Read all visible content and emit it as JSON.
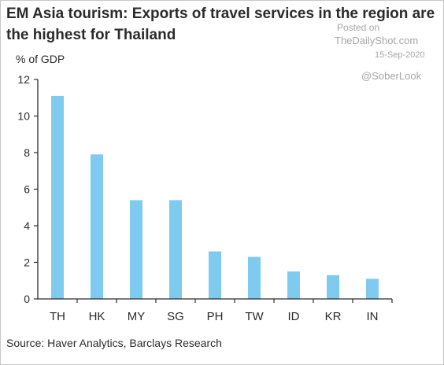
{
  "title_line1": "EM Asia tourism: Exports of travel services in the region are",
  "title_line2": "the highest for Thailand",
  "watermark": {
    "posted": "Posted on",
    "site": "TheDailyShot.com",
    "date": "15-Sep-2020",
    "handle": "@SoberLook"
  },
  "source": "Source: Haver Analytics, Barclays Research",
  "colors": {
    "bar": "#7ecbef",
    "axis": "#2b2b2b",
    "text": "#2b2b2b"
  },
  "chart_data": {
    "type": "bar",
    "title": "EM Asia tourism: Exports of travel services in the region are the highest for Thailand",
    "ylabel": "% of GDP",
    "categories": [
      "TH",
      "HK",
      "MY",
      "SG",
      "PH",
      "TW",
      "ID",
      "KR",
      "IN"
    ],
    "values": [
      11.1,
      7.9,
      5.4,
      5.4,
      2.6,
      2.3,
      1.5,
      1.3,
      1.1
    ],
    "ylim": [
      0,
      12
    ],
    "yticks": [
      "0",
      "2",
      "4",
      "6",
      "8",
      "10",
      "12"
    ],
    "grid": false,
    "legend": "none"
  }
}
